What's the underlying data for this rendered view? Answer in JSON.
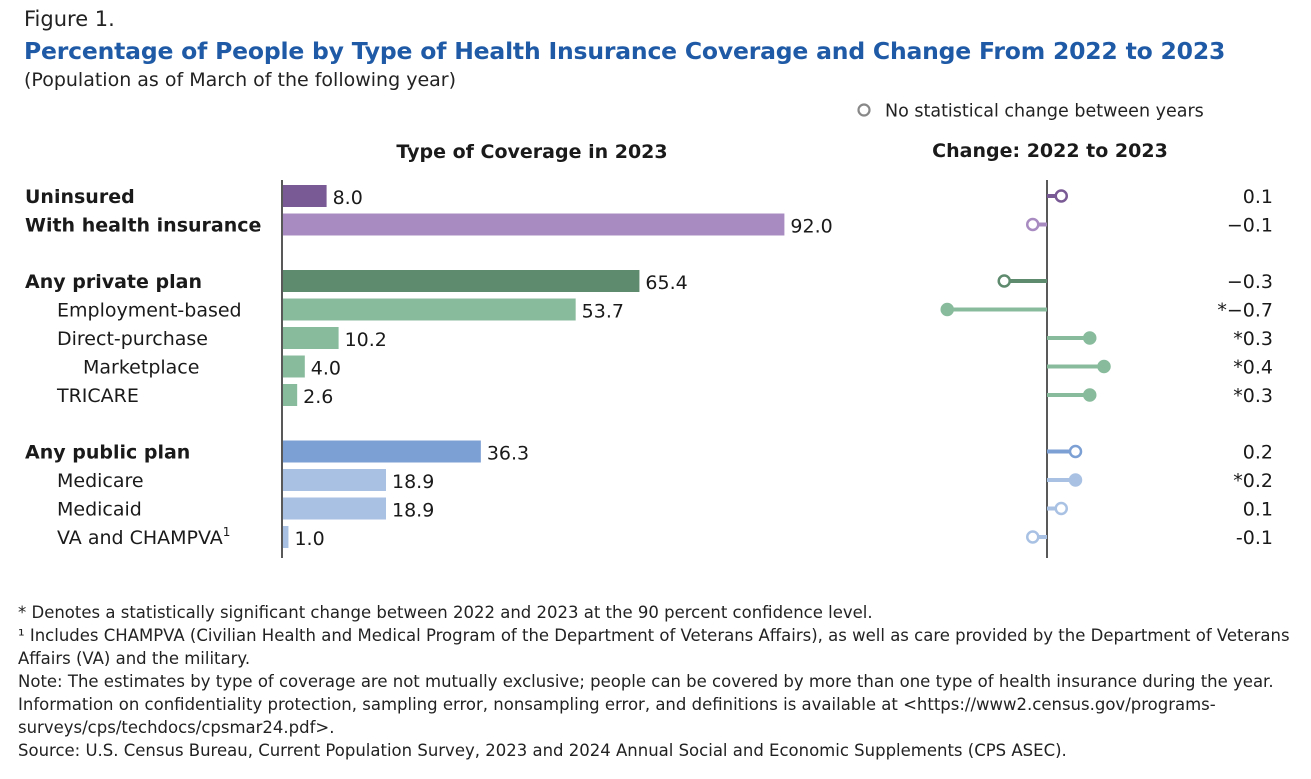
{
  "figure_label": "Figure 1.",
  "title": "Percentage of People by Type of Health Insurance Coverage and Change From 2022 to 2023",
  "subtitle": "(Population as of March of the following year)",
  "legend_text": "No statistical change between years",
  "footnotes": {
    "significance": "* Denotes a statistically significant change between 2022 and 2023 at the 90 percent confidence level.",
    "champva": "¹ Includes CHAMPVA (Civilian Health and Medical Program of the Department of Veterans Affairs), as well as care provided by the Department of Veterans Affairs (VA) and the military.",
    "note": "Note: The estimates by type of coverage are not mutually exclusive; people can be covered by more than one type of health insurance during the year. Information on confidentiality protection, sampling error, nonsampling error, and definitions is available at <https://www2.census.gov/programs-surveys/cps/techdocs/cpsmar24.pdf>.",
    "source": "Source: U.S. Census Bureau, Current Population Survey, 2023 and 2024 Annual Social and Economic Supplements (CPS ASEC)."
  },
  "colors": {
    "uninsured": "#7a5a94",
    "insured": "#a88bc0",
    "private_dark": "#5e8a6e",
    "private_light": "#88bb9c",
    "public_dark": "#7c9fd4",
    "public_light": "#a9c2e4",
    "title": "#1f5aa6"
  },
  "chart_data": [
    {
      "type": "bar",
      "orientation": "horizontal",
      "title": "Type of Coverage in 2023",
      "categories": [
        "Uninsured",
        "With health insurance",
        "Any private plan",
        "Employment-based",
        "Direct-purchase",
        "Marketplace",
        "TRICARE",
        "Any public plan",
        "Medicare",
        "Medicaid",
        "VA and CHAMPVA"
      ],
      "values": [
        8.0,
        92.0,
        65.4,
        53.7,
        10.2,
        4.0,
        2.6,
        36.3,
        18.9,
        18.9,
        1.0
      ],
      "value_labels": [
        "8.0",
        "92.0",
        "65.4",
        "53.7",
        "10.2",
        "4.0",
        "2.6",
        "36.3",
        "18.9",
        "18.9",
        "1.0"
      ],
      "label_superscripts": [
        "",
        "",
        "",
        "",
        "",
        "",
        "",
        "",
        "",
        "",
        "1"
      ],
      "bold": [
        true,
        true,
        true,
        false,
        false,
        false,
        false,
        true,
        false,
        false,
        false
      ],
      "indent": [
        0,
        0,
        0,
        1,
        1,
        2,
        1,
        0,
        1,
        1,
        1
      ],
      "group": [
        0,
        0,
        1,
        1,
        1,
        1,
        1,
        2,
        2,
        2,
        2
      ],
      "color_keys": [
        "uninsured",
        "insured",
        "private_dark",
        "private_light",
        "private_light",
        "private_light",
        "private_light",
        "public_dark",
        "public_light",
        "public_light",
        "public_light"
      ],
      "xlim": [
        0,
        100
      ]
    },
    {
      "type": "scatter",
      "subtype": "lollipop",
      "title": "Change: 2022 to 2023",
      "categories": [
        "Uninsured",
        "With health insurance",
        "Any private plan",
        "Employment-based",
        "Direct-purchase",
        "Marketplace",
        "TRICARE",
        "Any public plan",
        "Medicare",
        "Medicaid",
        "VA and CHAMPVA"
      ],
      "values": [
        0.1,
        -0.1,
        -0.3,
        -0.7,
        0.3,
        0.4,
        0.3,
        0.2,
        0.2,
        0.1,
        -0.1
      ],
      "value_labels": [
        "0.1",
        "−0.1",
        "−0.3",
        "*−0.7",
        "*0.3",
        "*0.4",
        "*0.3",
        "0.2",
        "*0.2",
        "0.1",
        "-0.1"
      ],
      "significant": [
        false,
        false,
        false,
        true,
        true,
        true,
        true,
        false,
        true,
        false,
        false
      ],
      "color_keys": [
        "uninsured",
        "insured",
        "private_dark",
        "private_light",
        "private_light",
        "private_light",
        "private_light",
        "public_dark",
        "public_light",
        "public_light",
        "public_light"
      ]
    }
  ]
}
